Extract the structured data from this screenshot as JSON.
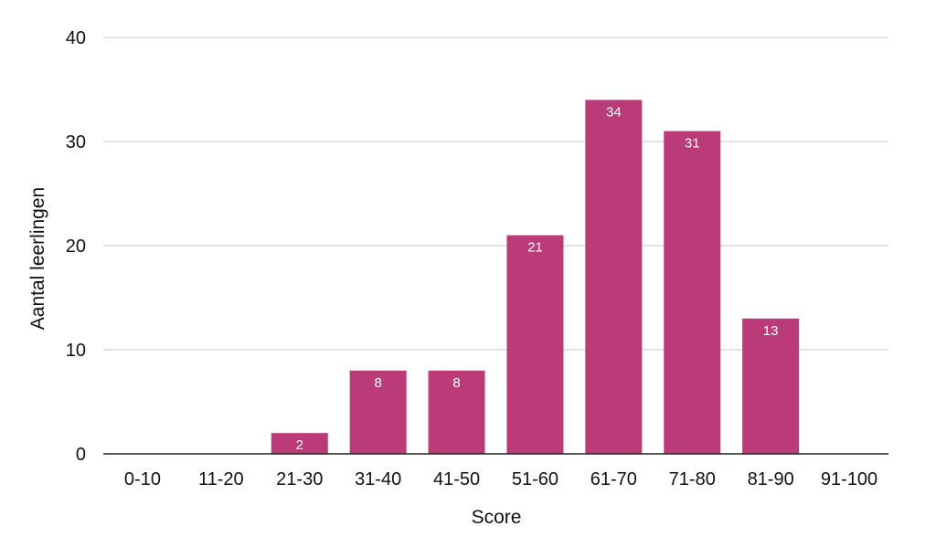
{
  "chart_data": {
    "type": "bar",
    "categories": [
      "0-10",
      "11-20",
      "21-30",
      "31-40",
      "41-50",
      "51-60",
      "61-70",
      "71-80",
      "81-90",
      "91-100"
    ],
    "values": [
      0,
      0,
      2,
      8,
      8,
      21,
      34,
      31,
      13,
      0
    ],
    "xlabel": "Score",
    "ylabel": "Aantal leerlingen",
    "ylim": [
      0,
      40
    ],
    "yticks": [
      0,
      10,
      20,
      30,
      40
    ],
    "grid": true,
    "data_labels": true,
    "colors": {
      "bar": "#bb3a78",
      "grid": "#c8c8c8",
      "axis": "#222222",
      "data_label": "#ffffff"
    }
  }
}
